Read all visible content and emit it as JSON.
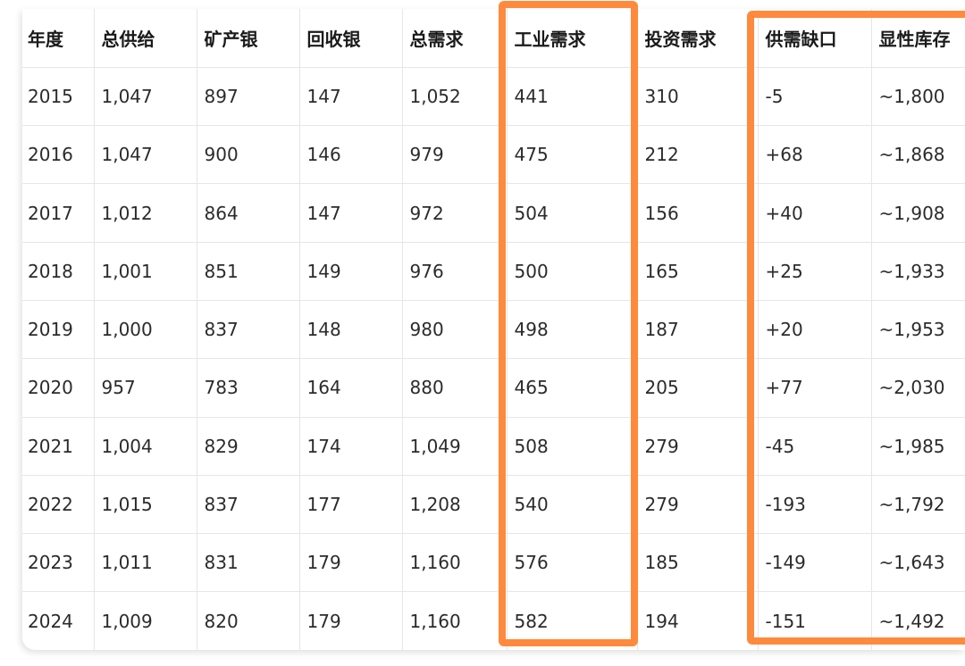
{
  "table": {
    "headers": [
      "年度",
      "总供给",
      "矿产银",
      "回收银",
      "总需求",
      "工业需求",
      "投资需求",
      "供需缺口",
      "显性库存"
    ],
    "rows": [
      [
        "2015",
        "1,047",
        "897",
        "147",
        "1,052",
        "441",
        "310",
        "-5",
        "~1,800"
      ],
      [
        "2016",
        "1,047",
        "900",
        "146",
        "979",
        "475",
        "212",
        "+68",
        "~1,868"
      ],
      [
        "2017",
        "1,012",
        "864",
        "147",
        "972",
        "504",
        "156",
        "+40",
        "~1,908"
      ],
      [
        "2018",
        "1,001",
        "851",
        "149",
        "976",
        "500",
        "165",
        "+25",
        "~1,933"
      ],
      [
        "2019",
        "1,000",
        "837",
        "148",
        "980",
        "498",
        "187",
        "+20",
        "~1,953"
      ],
      [
        "2020",
        "957",
        "783",
        "164",
        "880",
        "465",
        "205",
        "+77",
        "~2,030"
      ],
      [
        "2021",
        "1,004",
        "829",
        "174",
        "1,049",
        "508",
        "279",
        "-45",
        "~1,985"
      ],
      [
        "2022",
        "1,015",
        "837",
        "177",
        "1,208",
        "540",
        "279",
        "-193",
        "~1,792"
      ],
      [
        "2023",
        "1,011",
        "831",
        "179",
        "1,160",
        "576",
        "185",
        "-149",
        "~1,643"
      ],
      [
        "2024",
        "1,009",
        "820",
        "179",
        "1,160",
        "582",
        "194",
        "-151",
        "~1,492"
      ]
    ]
  }
}
